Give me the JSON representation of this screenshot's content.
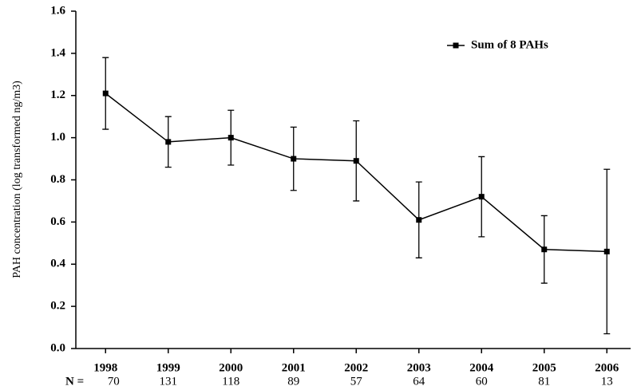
{
  "chart_data": {
    "type": "line",
    "y_label": "PAH concentration (log transformed ng/m3)",
    "categories": [
      "1998",
      "1999",
      "2000",
      "2001",
      "2002",
      "2003",
      "2004",
      "2005",
      "2006"
    ],
    "n_label": "N =",
    "n_values": [
      70,
      131,
      118,
      89,
      57,
      64,
      60,
      81,
      13
    ],
    "series": [
      {
        "name": "Sum of 8 PAHs",
        "color": "#000000",
        "values": [
          1.21,
          0.98,
          1.0,
          0.9,
          0.89,
          0.61,
          0.72,
          0.47,
          0.46
        ],
        "errors": [
          0.17,
          0.12,
          0.13,
          0.15,
          0.19,
          0.18,
          0.19,
          0.16,
          0.39
        ]
      }
    ],
    "ylim": [
      0,
      1.6
    ],
    "yticks": [
      {
        "value": 0,
        "label": "0.0"
      },
      0.2,
      0.4,
      0.6,
      0.8,
      {
        "value": 1,
        "label": "1.0"
      },
      1.2,
      1.4,
      1.6
    ],
    "grid": false,
    "legend": "upper right"
  }
}
